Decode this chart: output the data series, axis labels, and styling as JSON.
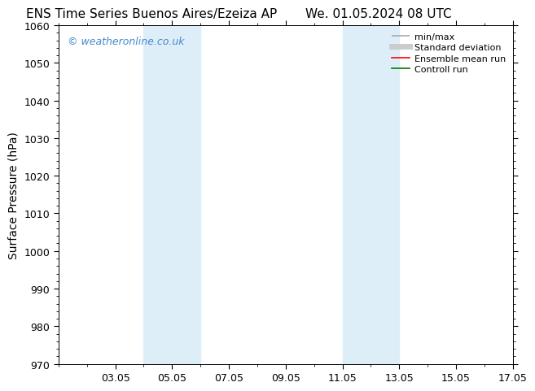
{
  "title_left": "ENS Time Series Buenos Aires/Ezeiza AP",
  "title_right": "We. 01.05.2024 08 UTC",
  "ylabel": "Surface Pressure (hPa)",
  "ylim": [
    970,
    1060
  ],
  "yticks": [
    970,
    980,
    990,
    1000,
    1010,
    1020,
    1030,
    1040,
    1050,
    1060
  ],
  "xlim": [
    0,
    16
  ],
  "xtick_labels": [
    "03.05",
    "05.05",
    "07.05",
    "09.05",
    "11.05",
    "13.05",
    "15.05",
    "17.05"
  ],
  "xtick_positions": [
    2,
    4,
    6,
    8,
    10,
    12,
    14,
    16
  ],
  "shaded_regions": [
    {
      "x_start": 3.0,
      "x_end": 5.0,
      "color": "#ddeef8"
    },
    {
      "x_start": 10.0,
      "x_end": 12.0,
      "color": "#ddeef8"
    }
  ],
  "watermark_text": "© weatheronline.co.uk",
  "watermark_color": "#4488cc",
  "legend_entries": [
    {
      "label": "min/max",
      "color": "#aaaaaa",
      "lw": 1.2
    },
    {
      "label": "Standard deviation",
      "color": "#cccccc",
      "lw": 5
    },
    {
      "label": "Ensemble mean run",
      "color": "#ff0000",
      "lw": 1.2
    },
    {
      "label": "Controll run",
      "color": "#007700",
      "lw": 1.2
    }
  ],
  "bg_color": "#ffffff",
  "plot_bg_color": "#ffffff",
  "title_fontsize": 11,
  "ylabel_fontsize": 10,
  "tick_labelsize": 9,
  "watermark_fontsize": 9,
  "legend_fontsize": 8
}
